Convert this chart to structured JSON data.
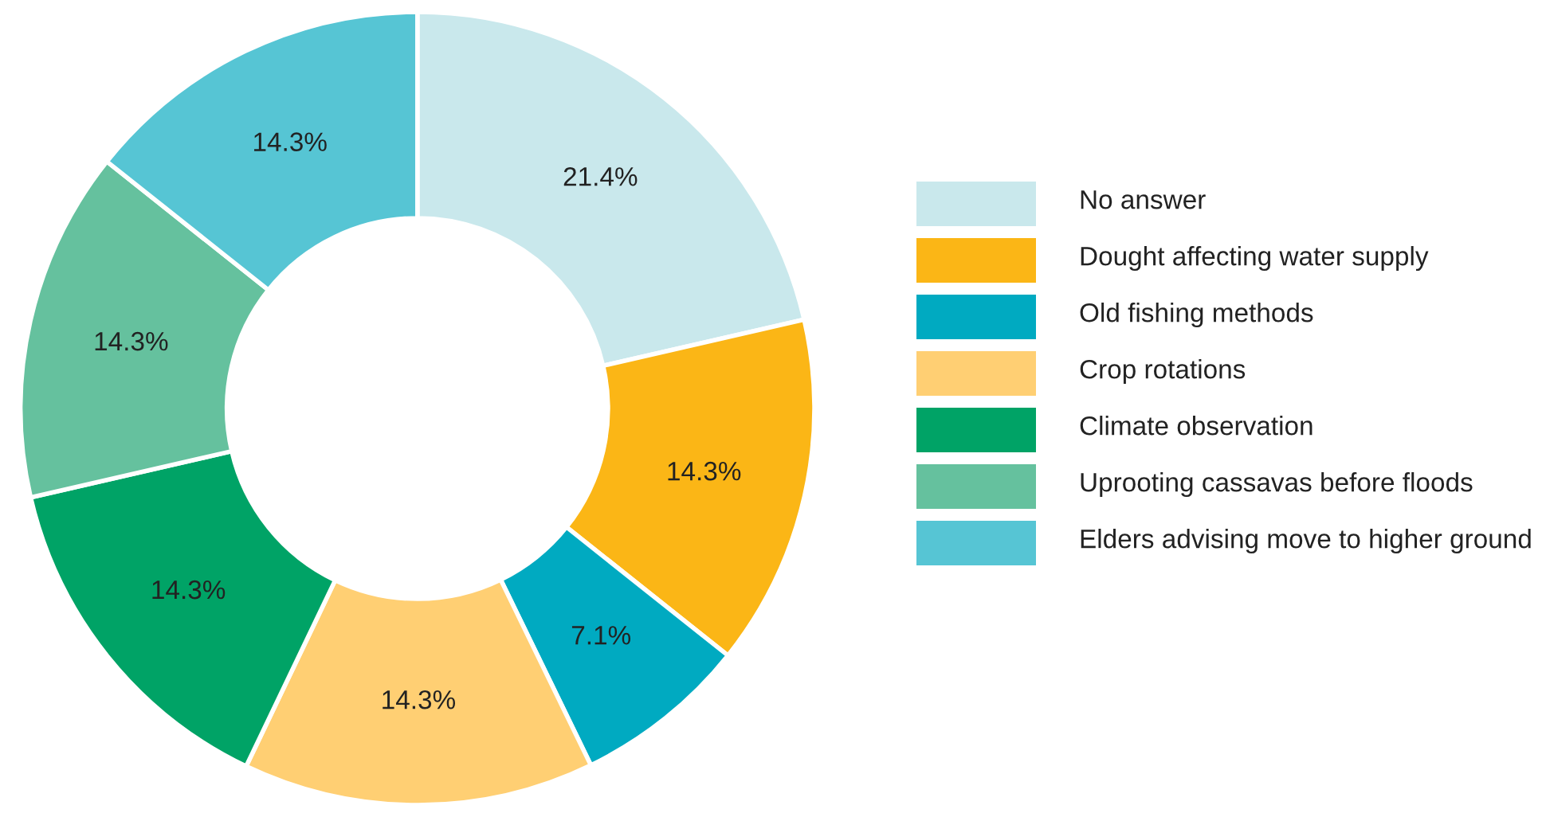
{
  "chart_data": {
    "type": "donut",
    "categories": [
      "No answer",
      "Dought affecting water supply",
      "Old fishing methods",
      "Crop rotations",
      "Climate observation",
      "Uprooting cassavas before floods",
      "Elders advising move to higher ground"
    ],
    "values": [
      21.4,
      14.3,
      7.1,
      14.3,
      14.3,
      14.3,
      14.3
    ],
    "value_labels": [
      "21.4%",
      "14.3%",
      "7.1%",
      "14.3%",
      "14.3%",
      "14.3%",
      "14.3%"
    ],
    "colors": [
      "#c9e8ec",
      "#fbb616",
      "#00aac1",
      "#ffcf73",
      "#00a366",
      "#65c19e",
      "#56c5d4"
    ],
    "legend": "right"
  }
}
